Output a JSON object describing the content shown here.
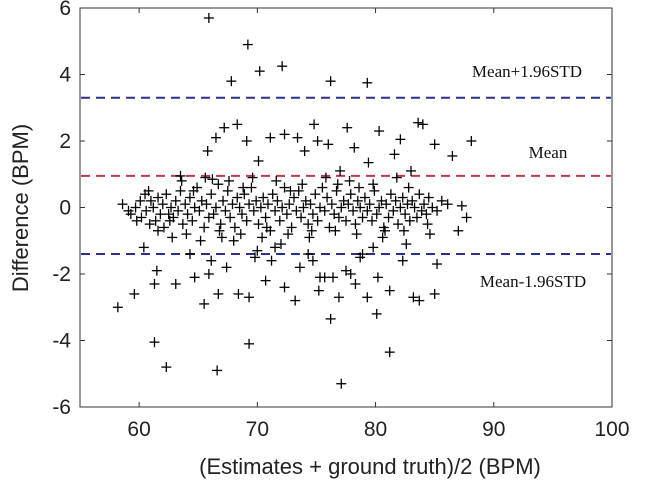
{
  "chart_data": {
    "type": "scatter",
    "title": "",
    "xlabel": "(Estimates + ground truth)/2 (BPM)",
    "ylabel": "Difference (BPM)",
    "xlim": [
      55,
      100
    ],
    "ylim": [
      -6,
      6
    ],
    "xticks": [
      60,
      70,
      80,
      90,
      100
    ],
    "yticks": [
      -6,
      -4,
      -2,
      0,
      2,
      4,
      6
    ],
    "grid": false,
    "marker": "plus",
    "reference_lines": [
      {
        "label": "Mean+1.96STD",
        "y": 3.3,
        "color": "#2e2e8c",
        "style": "dashed"
      },
      {
        "label": "Mean",
        "y": 0.95,
        "color": "#c0394a",
        "style": "dashed"
      },
      {
        "label": "Mean-1.96STD",
        "y": -1.4,
        "color": "#2e2e8c",
        "style": "dashed"
      }
    ],
    "points": [
      [
        65.9,
        5.7
      ],
      [
        69.2,
        4.9
      ],
      [
        72.1,
        4.25
      ],
      [
        70.2,
        4.1
      ],
      [
        67.8,
        3.8
      ],
      [
        76.2,
        3.8
      ],
      [
        79.3,
        3.75
      ],
      [
        67.2,
        2.4
      ],
      [
        68.3,
        2.5
      ],
      [
        72.3,
        2.2
      ],
      [
        74.8,
        2.5
      ],
      [
        77.6,
        2.4
      ],
      [
        75.1,
        2.0
      ],
      [
        80.3,
        2.3
      ],
      [
        83.6,
        2.55
      ],
      [
        84.0,
        2.5
      ],
      [
        88.1,
        2.0
      ],
      [
        73.4,
        2.1
      ],
      [
        65.8,
        1.7
      ],
      [
        70.1,
        1.4
      ],
      [
        76.0,
        1.9
      ],
      [
        78.2,
        1.8
      ],
      [
        82.1,
        2.05
      ],
      [
        85.0,
        1.9
      ],
      [
        69.1,
        2.0
      ],
      [
        71.1,
        2.1
      ],
      [
        66.5,
        2.1
      ],
      [
        74.0,
        1.7
      ],
      [
        77.0,
        1.1
      ],
      [
        81.6,
        1.6
      ],
      [
        86.5,
        1.55
      ],
      [
        63.5,
        0.95
      ],
      [
        66.2,
        0.85
      ],
      [
        79.4,
        1.35
      ],
      [
        83.0,
        1.1
      ],
      [
        58.2,
        -3.0
      ],
      [
        59.6,
        -2.6
      ],
      [
        61.3,
        -2.3
      ],
      [
        61.3,
        -4.05
      ],
      [
        62.3,
        -4.8
      ],
      [
        66.6,
        -4.9
      ],
      [
        69.3,
        -4.1
      ],
      [
        77.1,
        -5.3
      ],
      [
        81.2,
        -4.35
      ],
      [
        80.1,
        -3.2
      ],
      [
        76.2,
        -3.35
      ],
      [
        83.2,
        -2.7
      ],
      [
        85.0,
        -2.6
      ],
      [
        60.4,
        -1.2
      ],
      [
        61.5,
        -1.9
      ],
      [
        64.7,
        -2.1
      ],
      [
        65.5,
        -2.9
      ],
      [
        66.7,
        -2.6
      ],
      [
        67.4,
        -1.8
      ],
      [
        68.4,
        -2.6
      ],
      [
        69.3,
        -2.7
      ],
      [
        70.7,
        -2.2
      ],
      [
        71.2,
        -1.6
      ],
      [
        72.3,
        -2.4
      ],
      [
        73.2,
        -2.8
      ],
      [
        74.3,
        -1.4
      ],
      [
        75.7,
        -2.1
      ],
      [
        76.4,
        -2.1
      ],
      [
        77.5,
        -1.9
      ],
      [
        78.3,
        -2.3
      ],
      [
        79.3,
        -2.7
      ],
      [
        80.2,
        -2.1
      ],
      [
        82.3,
        -1.6
      ],
      [
        85.2,
        -1.7
      ],
      [
        66.1,
        -1.6
      ],
      [
        68.0,
        -1.0
      ],
      [
        70.0,
        -1.3
      ],
      [
        72.0,
        -1.1
      ],
      [
        74.7,
        -1.6
      ],
      [
        76.9,
        -2.7
      ],
      [
        78.7,
        -1.5
      ],
      [
        81.2,
        -2.5
      ],
      [
        83.7,
        -2.8
      ],
      [
        87.0,
        -0.7
      ],
      [
        63.1,
        -2.3
      ],
      [
        65.9,
        -2.0
      ],
      [
        69.8,
        -1.5
      ],
      [
        73.6,
        -1.8
      ],
      [
        75.3,
        -2.1
      ],
      [
        75.2,
        -2.5
      ],
      [
        77.9,
        -2.0
      ],
      [
        79.8,
        -1.2
      ],
      [
        82.6,
        -1.1
      ],
      [
        64.3,
        -1.4
      ],
      [
        71.5,
        -1.2
      ],
      [
        78.9,
        -1.4
      ],
      [
        58.6,
        0.1
      ],
      [
        59.1,
        -0.1
      ],
      [
        59.3,
        -0.2
      ],
      [
        59.7,
        0.0
      ],
      [
        60.1,
        0.2
      ],
      [
        60.2,
        -0.3
      ],
      [
        60.5,
        0.4
      ],
      [
        60.6,
        -0.1
      ],
      [
        60.9,
        -0.5
      ],
      [
        61.0,
        0.2
      ],
      [
        61.2,
        0.0
      ],
      [
        61.4,
        -0.4
      ],
      [
        61.6,
        0.3
      ],
      [
        61.8,
        -0.2
      ],
      [
        62.0,
        0.1
      ],
      [
        62.1,
        -0.6
      ],
      [
        62.3,
        0.4
      ],
      [
        62.5,
        -0.2
      ],
      [
        62.7,
        0.0
      ],
      [
        62.9,
        -0.3
      ],
      [
        63.1,
        0.2
      ],
      [
        63.3,
        -0.1
      ],
      [
        63.5,
        0.5
      ],
      [
        63.7,
        -0.5
      ],
      [
        63.9,
        0.1
      ],
      [
        64.1,
        -0.2
      ],
      [
        64.3,
        0.3
      ],
      [
        64.5,
        -0.4
      ],
      [
        64.7,
        0.0
      ],
      [
        64.9,
        0.6
      ],
      [
        65.1,
        -0.1
      ],
      [
        65.3,
        0.2
      ],
      [
        65.5,
        -0.6
      ],
      [
        65.7,
        0.1
      ],
      [
        65.9,
        -0.3
      ],
      [
        66.1,
        0.4
      ],
      [
        66.3,
        -0.2
      ],
      [
        66.5,
        0.0
      ],
      [
        66.7,
        0.7
      ],
      [
        66.9,
        -0.5
      ],
      [
        67.1,
        0.2
      ],
      [
        67.3,
        -0.1
      ],
      [
        67.5,
        0.5
      ],
      [
        67.7,
        -0.3
      ],
      [
        67.9,
        0.1
      ],
      [
        68.1,
        -0.6
      ],
      [
        68.3,
        0.3
      ],
      [
        68.5,
        0.0
      ],
      [
        68.7,
        -0.2
      ],
      [
        68.9,
        0.4
      ],
      [
        69.1,
        -0.4
      ],
      [
        69.3,
        0.1
      ],
      [
        69.5,
        0.6
      ],
      [
        69.7,
        -0.1
      ],
      [
        69.9,
        0.2
      ],
      [
        70.1,
        -0.5
      ],
      [
        70.3,
        0.0
      ],
      [
        70.5,
        0.3
      ],
      [
        70.7,
        -0.3
      ],
      [
        70.9,
        0.1
      ],
      [
        71.1,
        -0.7
      ],
      [
        71.3,
        0.4
      ],
      [
        71.5,
        -0.1
      ],
      [
        71.7,
        0.2
      ],
      [
        71.9,
        -0.4
      ],
      [
        72.1,
        0.0
      ],
      [
        72.3,
        0.6
      ],
      [
        72.5,
        -0.2
      ],
      [
        72.7,
        0.1
      ],
      [
        72.9,
        -0.6
      ],
      [
        73.1,
        0.3
      ],
      [
        73.3,
        -0.1
      ],
      [
        73.5,
        0.5
      ],
      [
        73.7,
        -0.3
      ],
      [
        73.9,
        0.0
      ],
      [
        74.1,
        0.2
      ],
      [
        74.3,
        -0.5
      ],
      [
        74.5,
        0.1
      ],
      [
        74.7,
        -0.2
      ],
      [
        74.9,
        0.4
      ],
      [
        75.1,
        -0.4
      ],
      [
        75.3,
        0.0
      ],
      [
        75.5,
        0.6
      ],
      [
        75.7,
        -0.1
      ],
      [
        75.9,
        0.3
      ],
      [
        76.1,
        -0.6
      ],
      [
        76.3,
        0.1
      ],
      [
        76.5,
        -0.2
      ],
      [
        76.7,
        0.5
      ],
      [
        76.9,
        -0.3
      ],
      [
        77.1,
        0.0
      ],
      [
        77.3,
        0.2
      ],
      [
        77.5,
        -0.4
      ],
      [
        77.7,
        0.1
      ],
      [
        77.9,
        0.4
      ],
      [
        78.1,
        -0.1
      ],
      [
        78.3,
        -0.5
      ],
      [
        78.5,
        0.2
      ],
      [
        78.7,
        0.0
      ],
      [
        78.9,
        -0.3
      ],
      [
        79.1,
        0.3
      ],
      [
        79.3,
        -0.1
      ],
      [
        79.5,
        0.1
      ],
      [
        79.7,
        -0.4
      ],
      [
        79.9,
        0.5
      ],
      [
        80.1,
        -0.2
      ],
      [
        80.3,
        0.0
      ],
      [
        80.5,
        0.2
      ],
      [
        80.7,
        -0.6
      ],
      [
        80.9,
        0.1
      ],
      [
        81.1,
        -0.3
      ],
      [
        81.3,
        0.4
      ],
      [
        81.5,
        -0.1
      ],
      [
        81.7,
        0.2
      ],
      [
        81.9,
        -0.5
      ],
      [
        82.1,
        0.0
      ],
      [
        82.3,
        0.3
      ],
      [
        82.5,
        -0.2
      ],
      [
        82.7,
        0.1
      ],
      [
        82.9,
        -0.4
      ],
      [
        83.1,
        0.2
      ],
      [
        83.3,
        0.0
      ],
      [
        83.5,
        -0.3
      ],
      [
        83.7,
        0.4
      ],
      [
        83.9,
        -0.1
      ],
      [
        84.1,
        0.1
      ],
      [
        84.3,
        -0.2
      ],
      [
        84.5,
        0.3
      ],
      [
        84.8,
        0.0
      ],
      [
        85.2,
        -0.1
      ],
      [
        85.6,
        0.2
      ],
      [
        86.1,
        0.1
      ],
      [
        87.3,
        0.05
      ],
      [
        87.7,
        -0.3
      ],
      [
        61.6,
        -0.7
      ],
      [
        62.8,
        -0.9
      ],
      [
        64.0,
        -0.8
      ],
      [
        65.2,
        -1.0
      ],
      [
        67.0,
        -0.9
      ],
      [
        68.6,
        -0.8
      ],
      [
        70.4,
        -0.9
      ],
      [
        72.6,
        -0.8
      ],
      [
        74.4,
        -0.9
      ],
      [
        76.6,
        -0.7
      ],
      [
        78.4,
        -0.8
      ],
      [
        80.6,
        -0.9
      ],
      [
        82.4,
        -0.7
      ],
      [
        84.6,
        -0.8
      ],
      [
        63.6,
        0.8
      ],
      [
        65.6,
        0.9
      ],
      [
        67.6,
        0.8
      ],
      [
        69.6,
        0.9
      ],
      [
        71.6,
        0.8
      ],
      [
        73.8,
        0.7
      ],
      [
        75.8,
        0.9
      ],
      [
        77.8,
        0.8
      ],
      [
        79.8,
        0.7
      ],
      [
        81.8,
        0.9
      ],
      [
        59.8,
        -0.4
      ],
      [
        60.8,
        0.5
      ],
      [
        62.6,
        -0.4
      ],
      [
        64.6,
        0.5
      ],
      [
        66.8,
        -0.7
      ],
      [
        68.8,
        0.6
      ],
      [
        70.8,
        -0.6
      ],
      [
        72.8,
        0.5
      ],
      [
        74.6,
        -0.7
      ],
      [
        76.8,
        0.7
      ],
      [
        78.6,
        0.6
      ],
      [
        80.8,
        -0.7
      ],
      [
        82.8,
        0.6
      ],
      [
        84.4,
        -0.5
      ]
    ]
  }
}
